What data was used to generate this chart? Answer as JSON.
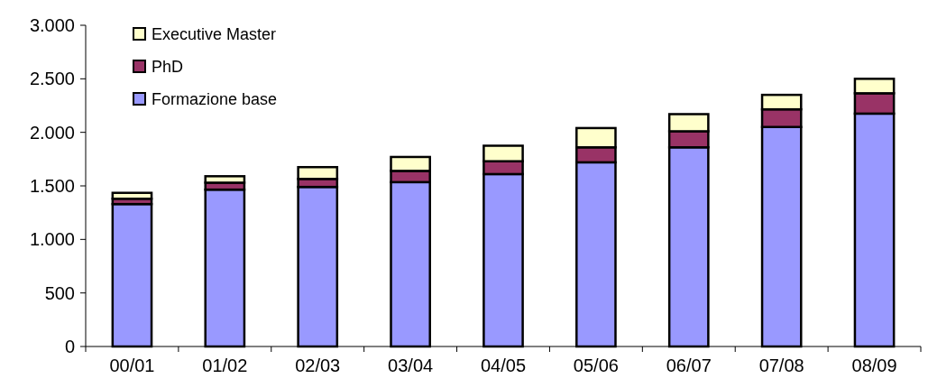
{
  "chart_data": {
    "type": "bar",
    "stacked": true,
    "categories": [
      "00/01",
      "01/02",
      "02/03",
      "03/04",
      "04/05",
      "05/06",
      "06/07",
      "07/08",
      "08/09"
    ],
    "series": [
      {
        "name": "Formazione base",
        "color": "#9999ff",
        "values": [
          1330,
          1465,
          1490,
          1535,
          1610,
          1720,
          1860,
          2050,
          2175
        ]
      },
      {
        "name": "PhD",
        "color": "#993366",
        "values": [
          50,
          65,
          75,
          105,
          120,
          140,
          150,
          165,
          190
        ]
      },
      {
        "name": "Executive Master",
        "color": "#ffffcc",
        "values": [
          55,
          60,
          110,
          130,
          145,
          180,
          160,
          135,
          135
        ]
      }
    ],
    "ylim": [
      0,
      3000
    ],
    "yticks": [
      0,
      500,
      {
        "value": 1000,
        "label": "1.000"
      },
      {
        "value": 1500,
        "label": "1.500"
      },
      {
        "value": 2000,
        "label": "2.000"
      },
      {
        "value": 2500,
        "label": "2.500"
      },
      {
        "value": 3000,
        "label": "3.000"
      }
    ],
    "grid": false,
    "legend": "top left"
  }
}
